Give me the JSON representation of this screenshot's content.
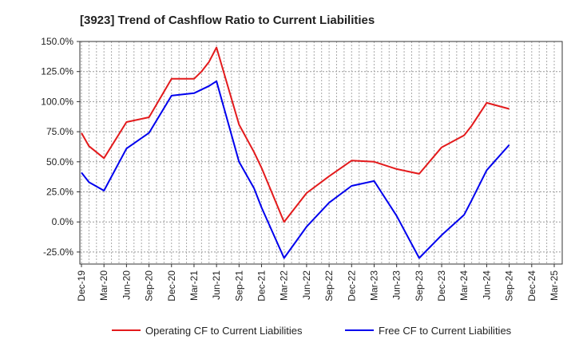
{
  "chart_data": {
    "type": "line",
    "title": "[3923]  Trend of Cashflow Ratio to Current Liabilities",
    "xlabel": "",
    "ylabel": "",
    "ylim": [
      -35,
      150
    ],
    "y_ticks": [
      "150.0%",
      "125.0%",
      "100.0%",
      "75.0%",
      "50.0%",
      "25.0%",
      "0.0%",
      "-25.0%"
    ],
    "y_tick_values": [
      150,
      125,
      100,
      75,
      50,
      25,
      0,
      -25
    ],
    "x_tick_labels": [
      "Dec-19",
      "Mar-20",
      "Jun-20",
      "Sep-20",
      "Dec-20",
      "Mar-21",
      "Jun-21",
      "Sep-21",
      "Dec-21",
      "Mar-22",
      "Jun-22",
      "Sep-22",
      "Dec-22",
      "Mar-23",
      "Jun-23",
      "Sep-23",
      "Dec-23",
      "Mar-24",
      "Jun-24",
      "Sep-24",
      "Dec-24",
      "Mar-25"
    ],
    "x": [
      "Dec-19",
      "Jan-20",
      "Mar-20",
      "Jun-20",
      "Sep-20",
      "Dec-20",
      "Mar-21",
      "Apr-21",
      "May-21",
      "Jun-21",
      "Sep-21",
      "Nov-21",
      "Dec-21",
      "Mar-22",
      "Jun-22",
      "Sep-22",
      "Dec-22",
      "Mar-23",
      "Jun-23",
      "Sep-23",
      "Dec-23",
      "Mar-24",
      "Apr-24",
      "Jun-24",
      "Sep-24"
    ],
    "series": [
      {
        "name": "Operating CF to Current Liabilities",
        "color": "#e31a1c",
        "values": [
          74,
          63,
          53,
          83,
          87,
          119,
          119,
          125,
          133,
          145,
          81,
          58,
          45,
          0,
          24,
          38,
          51,
          50,
          44,
          40,
          62,
          72,
          80,
          99,
          94
        ]
      },
      {
        "name": "Free CF to Current Liabilities",
        "color": "#0000ee",
        "values": [
          41,
          33,
          26,
          61,
          74,
          105,
          107,
          110,
          113,
          117,
          50,
          28,
          12,
          -30,
          -4,
          16,
          30,
          34,
          5,
          -30,
          -11,
          6,
          18,
          43,
          64
        ]
      }
    ],
    "grid": true,
    "legend_position": "bottom"
  }
}
